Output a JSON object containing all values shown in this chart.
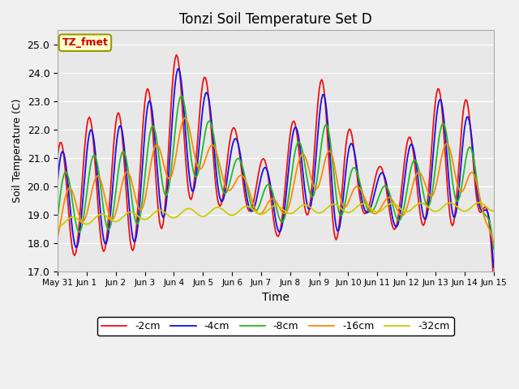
{
  "title": "Tonzi Soil Temperature Set D",
  "xlabel": "Time",
  "ylabel": "Soil Temperature (C)",
  "ylim": [
    17.0,
    25.5
  ],
  "annotation_text": "TZ_fmet",
  "annotation_color": "#cc0000",
  "annotation_bg": "#ffffcc",
  "annotation_border": "#999900",
  "fig_facecolor": "#f0f0f0",
  "ax_facecolor": "#e8e8e8",
  "legend_labels": [
    "-2cm",
    "-4cm",
    "-8cm",
    "-16cm",
    "-32cm"
  ],
  "line_colors": [
    "#ee1111",
    "#1111ee",
    "#22bb22",
    "#ff8800",
    "#cccc00"
  ],
  "tick_labels": [
    "May 31",
    "Jun 1",
    "Jun 2",
    "Jun 3",
    "Jun 4",
    "Jun 5",
    "Jun 6",
    "Jun 7",
    "Jun 8",
    "Jun 9",
    "Jun 10",
    "Jun 11",
    "Jun 12",
    "Jun 13",
    "Jun 14",
    "Jun 15"
  ],
  "yticks": [
    17.0,
    18.0,
    19.0,
    20.0,
    21.0,
    22.0,
    23.0,
    24.0,
    25.0
  ],
  "grid_color": "#ffffff",
  "figsize": [
    6.4,
    4.8
  ],
  "dpi": 100
}
